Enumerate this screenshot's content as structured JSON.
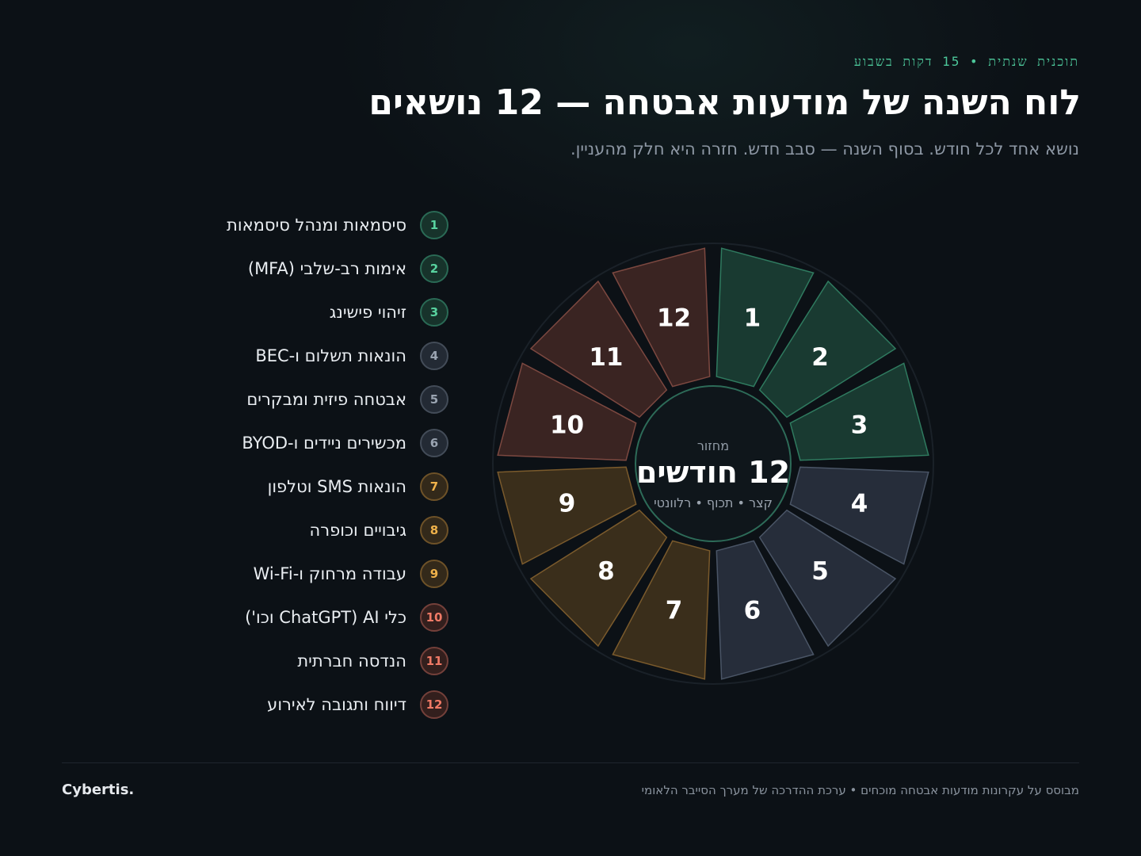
{
  "header": {
    "eyebrow": "תוכנית שנתית • 15 דקות בשבוע",
    "title": "לוח השנה של מודעות אבטחה — 12 נושאים",
    "subtitle": "נושא אחד לכל חודש. בסוף השנה — סבב חדש. חזרה היא חלק מהעניין."
  },
  "topics": [
    {
      "num": "1",
      "label": "סיסמאות ומנהל סיסמאות",
      "group": "green"
    },
    {
      "num": "2",
      "label": "אימות רב-שלבי (MFA)",
      "group": "green"
    },
    {
      "num": "3",
      "label": "זיהוי פישינג",
      "group": "green"
    },
    {
      "num": "4",
      "label": "הונאות תשלום ו-BEC",
      "group": "slate"
    },
    {
      "num": "5",
      "label": "אבטחה פיזית ומבקרים",
      "group": "slate"
    },
    {
      "num": "6",
      "label": "מכשירים ניידים ו-BYOD",
      "group": "slate"
    },
    {
      "num": "7",
      "label": "הונאות SMS וטלפון",
      "group": "amber"
    },
    {
      "num": "8",
      "label": "גיבויים וכופרה",
      "group": "amber"
    },
    {
      "num": "9",
      "label": "עבודה מרחוק ו-Wi-Fi",
      "group": "amber"
    },
    {
      "num": "10",
      "label": "כלי AI (ChatGPT וכו')",
      "group": "rust"
    },
    {
      "num": "11",
      "label": "הנדסה חברתית",
      "group": "rust"
    },
    {
      "num": "12",
      "label": "דיווח ותגובה לאירוע",
      "group": "rust"
    }
  ],
  "wheel": {
    "center_kicker": "מחזור",
    "center_title": "12 חודשים",
    "center_tagline": "קצר • תכוף • רלוונטי",
    "segments": [
      "1",
      "2",
      "3",
      "4",
      "5",
      "6",
      "7",
      "8",
      "9",
      "10",
      "11",
      "12"
    ]
  },
  "colors": {
    "green": {
      "fill": "#193a31",
      "stroke": "#2f7a5f"
    },
    "slate": {
      "fill": "#262d3a",
      "stroke": "#4a5566"
    },
    "amber": {
      "fill": "#3a2e1b",
      "stroke": "#7a5a2c"
    },
    "rust": {
      "fill": "#3a2422",
      "stroke": "#7c4840"
    },
    "accent": "#4cc79a"
  },
  "footer": {
    "note": "מבוסס על עקרונות מודעות אבטחה מוכחים • ערכת ההדרכה של מערך הסייבר הלאומי",
    "brand": "Cybertis."
  }
}
